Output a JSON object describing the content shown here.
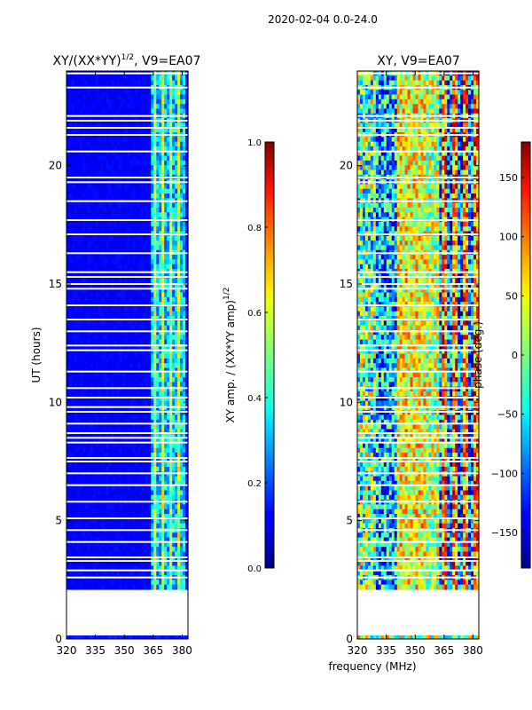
{
  "figure": {
    "suptitle": "2020-02-04 0.0-24.0",
    "xlabel_shared": "frequency (MHz)"
  },
  "chart_data": [
    {
      "type": "heatmap",
      "title_main": "XY/(XX*YY)",
      "title_sup": "1/2",
      "title_suffix": ", V9=EA07",
      "xlabel": "",
      "ylabel": "UT (hours)",
      "xlim": [
        320,
        383
      ],
      "ylim": [
        0,
        24
      ],
      "xticks": [
        "320",
        "335",
        "350",
        "365",
        "380"
      ],
      "xtick_values": [
        320,
        335,
        350,
        365,
        380
      ],
      "yticks": [
        "0",
        "5",
        "10",
        "15",
        "20"
      ],
      "ytick_values": [
        0,
        5,
        10,
        15,
        20
      ],
      "data_start_hour": 2.1,
      "colorbar": {
        "label_main": "XY amp. / (XX*YY amp)",
        "label_sup": "1/2",
        "range": [
          0.0,
          1.0
        ],
        "ticks": [
          "0.0",
          "0.2",
          "0.4",
          "0.6",
          "0.8",
          "1.0"
        ],
        "tick_values": [
          0.0,
          0.2,
          0.4,
          0.6,
          0.8,
          1.0
        ],
        "colormap": "jet"
      }
    },
    {
      "type": "heatmap",
      "title_main": "XY, V9=EA07",
      "xlabel": "frequency (MHz)",
      "ylabel": "",
      "xlim": [
        320,
        383
      ],
      "ylim": [
        0,
        24
      ],
      "xticks": [
        "320",
        "335",
        "350",
        "365",
        "380"
      ],
      "xtick_values": [
        320,
        335,
        350,
        365,
        380
      ],
      "yticks": [
        "0",
        "5",
        "10",
        "15",
        "20"
      ],
      "ytick_values": [
        0,
        5,
        10,
        15,
        20
      ],
      "data_start_hour": 2.1,
      "colorbar": {
        "label": "phase (deg.)",
        "range": [
          -180,
          180
        ],
        "ticks": [
          "−150",
          "−100",
          "−50",
          "0",
          "50",
          "100",
          "150"
        ],
        "tick_values": [
          -150,
          -100,
          -50,
          0,
          50,
          100,
          150
        ],
        "colormap": "jet"
      }
    }
  ],
  "flagged_hours": [
    2.6,
    2.9,
    3.3,
    3.45,
    4.1,
    4.6,
    5.1,
    5.8,
    6.5,
    7.0,
    7.5,
    7.65,
    8.3,
    8.5,
    8.7,
    9.1,
    9.6,
    9.8,
    10.2,
    10.6,
    11.3,
    12.2,
    12.4,
    13.0,
    13.5,
    14.1,
    14.8,
    15.0,
    15.3,
    15.5,
    16.3,
    17.1,
    17.7,
    18.5,
    19.3,
    19.5,
    20.6,
    21.3,
    21.6,
    21.9,
    22.1,
    23.3,
    23.9
  ]
}
